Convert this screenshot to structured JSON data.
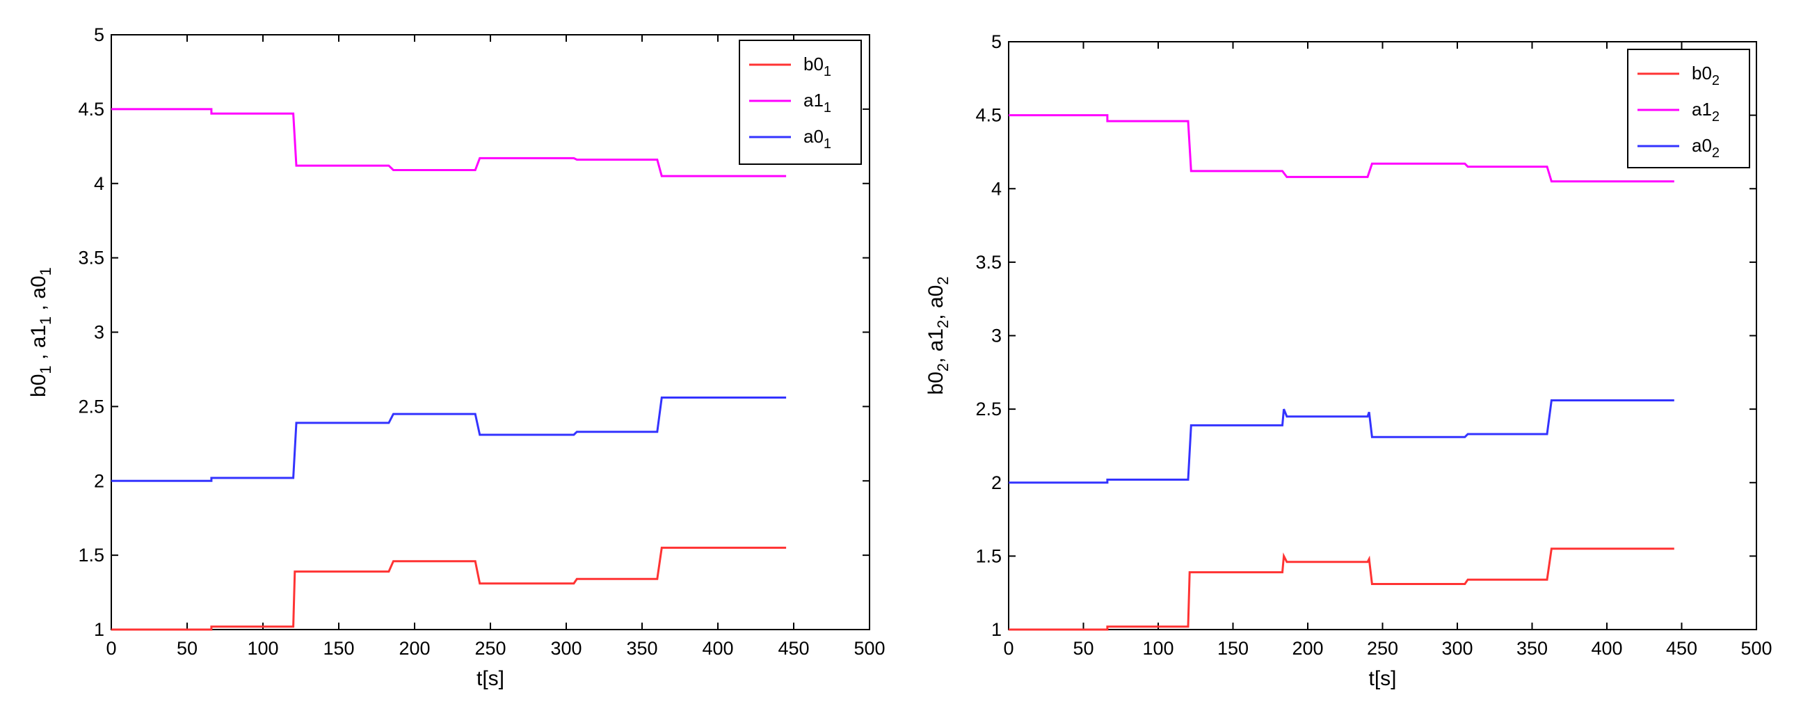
{
  "chart_data": [
    {
      "type": "line",
      "xlabel": "t[s]",
      "ylabel": {
        "parts": [
          [
            "b0",
            ""
          ],
          [
            "1",
            "sub"
          ],
          [
            " , a1",
            ""
          ],
          [
            "1",
            "sub"
          ],
          [
            " , a0",
            ""
          ],
          [
            "1",
            "sub"
          ]
        ]
      },
      "xlim": [
        0,
        500
      ],
      "ylim": [
        1,
        5
      ],
      "xticks": [
        0,
        50,
        100,
        150,
        200,
        250,
        300,
        350,
        400,
        450,
        500
      ],
      "yticks": [
        1,
        1.5,
        2,
        2.5,
        3,
        3.5,
        4,
        4.5,
        5
      ],
      "ytick_labels": [
        "1",
        "1.5",
        "2",
        "2.5",
        "3",
        "3.5",
        "4",
        "4.5",
        "5"
      ],
      "grid": false,
      "legend_position": "top-right",
      "series": [
        {
          "name": "b0",
          "sub": "1",
          "color": "#ff3333",
          "x": [
            0,
            66,
            66,
            120,
            121,
            183,
            186,
            240,
            243,
            305,
            307,
            360,
            363,
            445
          ],
          "y": [
            1.0,
            1.0,
            1.02,
            1.02,
            1.39,
            1.39,
            1.46,
            1.46,
            1.31,
            1.31,
            1.34,
            1.34,
            1.55,
            1.55
          ]
        },
        {
          "name": "a1",
          "sub": "1",
          "color": "#ff00ff",
          "x": [
            0,
            66,
            66,
            120,
            122,
            183,
            186,
            240,
            243,
            305,
            307,
            360,
            363,
            445
          ],
          "y": [
            4.5,
            4.5,
            4.47,
            4.47,
            4.12,
            4.12,
            4.09,
            4.09,
            4.17,
            4.17,
            4.16,
            4.16,
            4.05,
            4.05
          ]
        },
        {
          "name": "a0",
          "sub": "1",
          "color": "#3333ff",
          "x": [
            0,
            66,
            66,
            120,
            122,
            183,
            186,
            240,
            243,
            305,
            307,
            360,
            363,
            445
          ],
          "y": [
            2.0,
            2.0,
            2.02,
            2.02,
            2.39,
            2.39,
            2.45,
            2.45,
            2.31,
            2.31,
            2.33,
            2.33,
            2.56,
            2.56
          ]
        }
      ]
    },
    {
      "type": "line",
      "xlabel": "t[s]",
      "ylabel": {
        "parts": [
          [
            "b0",
            ""
          ],
          [
            "2",
            "sub"
          ],
          [
            ", a1",
            ""
          ],
          [
            "2",
            "sub"
          ],
          [
            ", a0",
            ""
          ],
          [
            "2",
            "sub"
          ]
        ]
      },
      "xlim": [
        0,
        500
      ],
      "ylim": [
        1,
        5
      ],
      "xticks": [
        0,
        50,
        100,
        150,
        200,
        250,
        300,
        350,
        400,
        450,
        500
      ],
      "yticks": [
        1,
        1.5,
        2,
        2.5,
        3,
        3.5,
        4,
        4.5,
        5
      ],
      "ytick_labels": [
        "1",
        "1.5",
        "2",
        "2.5",
        "3",
        "3.5",
        "4",
        "4.5",
        "5"
      ],
      "grid": false,
      "legend_position": "top-right",
      "series": [
        {
          "name": "b0",
          "sub": "2",
          "color": "#ff3333",
          "x": [
            0,
            66,
            66,
            120,
            121,
            183,
            184,
            186,
            240,
            241,
            243,
            305,
            307,
            360,
            363,
            445
          ],
          "y": [
            1.0,
            1.0,
            1.02,
            1.02,
            1.39,
            1.39,
            1.5,
            1.46,
            1.46,
            1.48,
            1.31,
            1.31,
            1.34,
            1.34,
            1.55,
            1.55
          ]
        },
        {
          "name": "a1",
          "sub": "2",
          "color": "#ff00ff",
          "x": [
            0,
            66,
            66,
            120,
            122,
            183,
            186,
            240,
            243,
            305,
            307,
            360,
            363,
            445
          ],
          "y": [
            4.5,
            4.5,
            4.46,
            4.46,
            4.12,
            4.12,
            4.08,
            4.08,
            4.17,
            4.17,
            4.15,
            4.15,
            4.05,
            4.05
          ]
        },
        {
          "name": "a0",
          "sub": "2",
          "color": "#3333ff",
          "x": [
            0,
            66,
            66,
            120,
            122,
            183,
            184,
            186,
            240,
            241,
            243,
            305,
            307,
            360,
            363,
            445
          ],
          "y": [
            2.0,
            2.0,
            2.02,
            2.02,
            2.39,
            2.39,
            2.5,
            2.45,
            2.45,
            2.48,
            2.31,
            2.31,
            2.33,
            2.33,
            2.56,
            2.56
          ]
        }
      ]
    }
  ]
}
